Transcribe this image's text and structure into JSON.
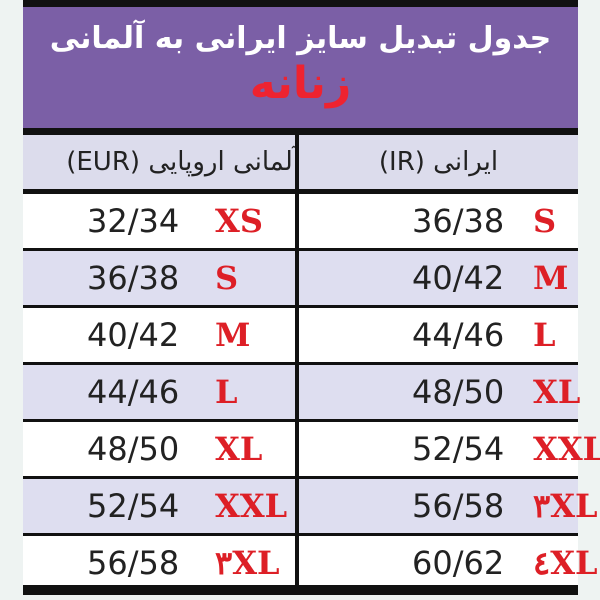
{
  "title": "جدول تبدیل سایز ایرانی به آلمانی",
  "subtitle": "زنانه",
  "headers": {
    "german": "آلمانی اروپایی (EUR)",
    "iranian": "ایرانی (IR)"
  },
  "rows": [
    {
      "german_size": "32/34",
      "german_label": "XS",
      "iran_size": "36/38",
      "iran_label": "S"
    },
    {
      "german_size": "36/38",
      "german_label": "S",
      "iran_size": "40/42",
      "iran_label": "M"
    },
    {
      "german_size": "40/42",
      "german_label": "M",
      "iran_size": "44/46",
      "iran_label": "L"
    },
    {
      "german_size": "44/46",
      "german_label": "L",
      "iran_size": "48/50",
      "iran_label": "XL"
    },
    {
      "german_size": "48/50",
      "german_label": "XL",
      "iran_size": "52/54",
      "iran_label": "XXL"
    },
    {
      "german_size": "52/54",
      "german_label": "XXL",
      "iran_size": "56/58",
      "iran_label": "۳XL"
    },
    {
      "german_size": "56/58",
      "german_label": "۳XL",
      "iran_size": "60/62",
      "iran_label": "٤XL"
    }
  ],
  "colors": {
    "banner": "#7b5fa6",
    "accent_red": "#dd1f26",
    "row_alt": "#dedef0"
  }
}
